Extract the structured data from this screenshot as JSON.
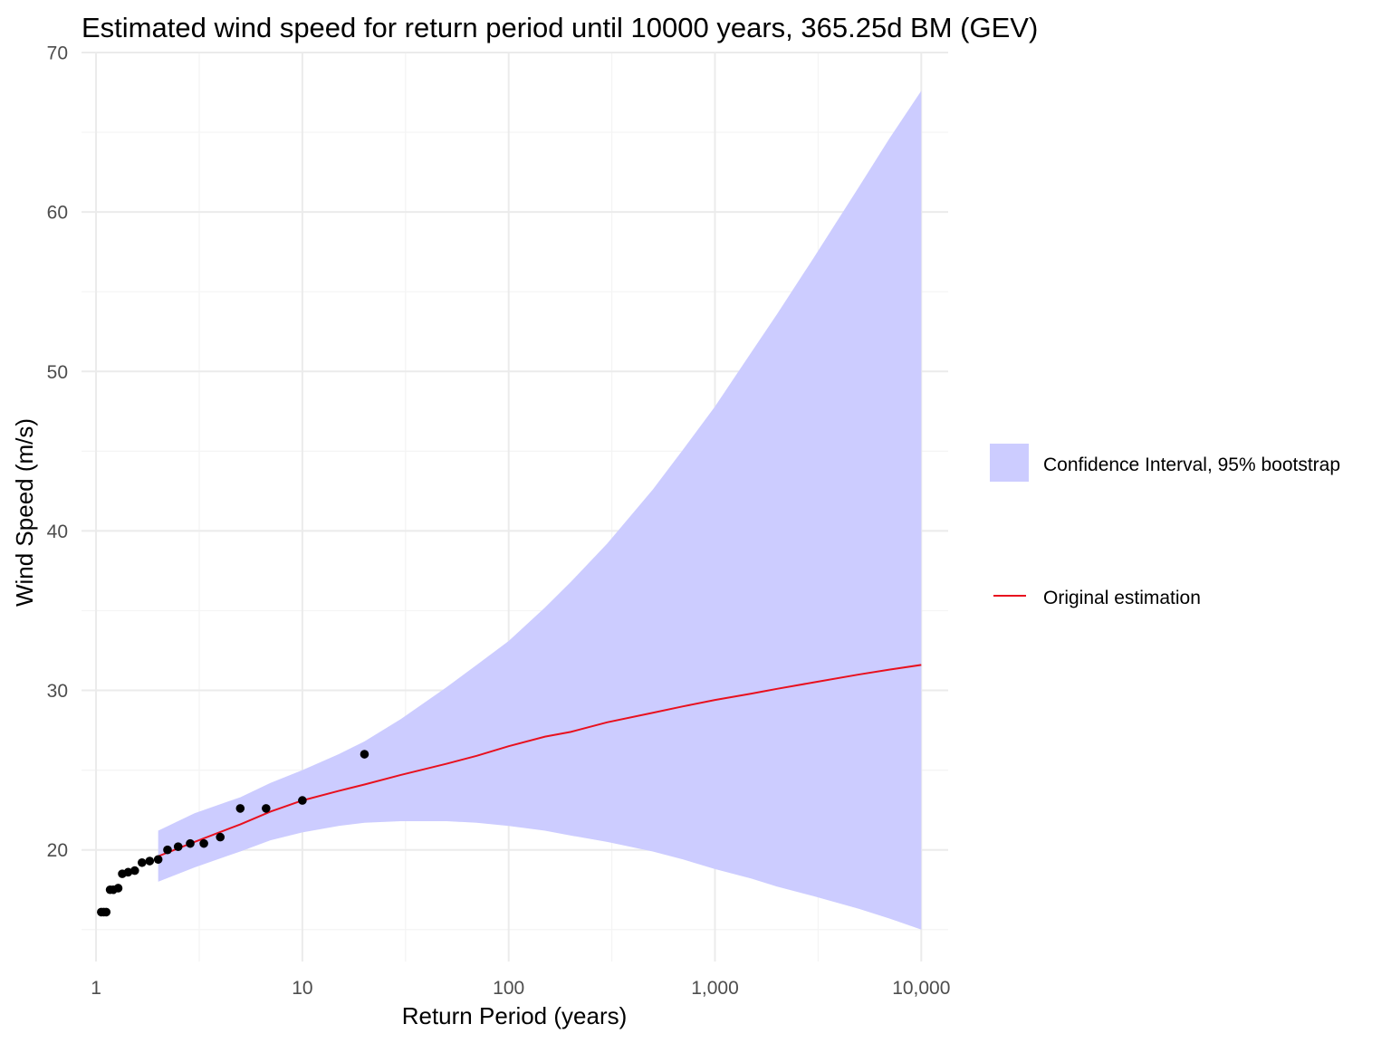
{
  "chart_data": {
    "type": "line",
    "title": "Estimated wind speed for return period until 10000 years, 365.25d BM (GEV)",
    "xlabel": "Return Period (years)",
    "ylabel": "Wind Speed (m/s)",
    "x_scale": "log10",
    "xlim": [
      0.85,
      13500
    ],
    "ylim": [
      13.0,
      70.0
    ],
    "x_ticks": [
      1,
      10,
      100,
      1000,
      10000
    ],
    "x_tick_labels": [
      "1",
      "10",
      "100",
      "1,000",
      "10,000"
    ],
    "y_ticks": [
      20,
      30,
      40,
      50,
      60,
      70
    ],
    "y_tick_labels": [
      "20",
      "30",
      "40",
      "50",
      "60",
      "70"
    ],
    "grid": true,
    "legend_position": "right",
    "colors": {
      "band": "#ccccff",
      "line": "#e8101e",
      "points": "#000000",
      "grid_major": "#ebebeb",
      "grid_minor": "#f4f4f4"
    },
    "confidence_band": {
      "name": "Confidence Interval, 95% bootstrap",
      "x": [
        2,
        3,
        5,
        7,
        10,
        15,
        20,
        30,
        50,
        70,
        100,
        150,
        200,
        300,
        500,
        700,
        1000,
        1500,
        2000,
        3000,
        5000,
        7000,
        10000
      ],
      "lower": [
        18.0,
        18.9,
        19.9,
        20.6,
        21.1,
        21.5,
        21.7,
        21.8,
        21.8,
        21.7,
        21.5,
        21.2,
        20.9,
        20.5,
        19.9,
        19.4,
        18.8,
        18.2,
        17.7,
        17.1,
        16.3,
        15.7,
        15.0
      ],
      "upper": [
        21.2,
        22.3,
        23.3,
        24.2,
        25.0,
        26.0,
        26.8,
        28.2,
        30.2,
        31.6,
        33.1,
        35.2,
        36.8,
        39.2,
        42.6,
        45.1,
        47.8,
        51.2,
        53.6,
        57.1,
        61.6,
        64.6,
        67.6
      ]
    },
    "series": [
      {
        "name": "Original estimation",
        "x": [
          2,
          3,
          5,
          7,
          10,
          15,
          20,
          30,
          50,
          70,
          100,
          150,
          200,
          300,
          500,
          700,
          1000,
          1500,
          2000,
          3000,
          5000,
          7000,
          10000
        ],
        "y": [
          19.6,
          20.5,
          21.6,
          22.4,
          23.1,
          23.7,
          24.1,
          24.7,
          25.4,
          25.9,
          26.5,
          27.1,
          27.4,
          28.0,
          28.6,
          29.0,
          29.4,
          29.8,
          30.1,
          30.5,
          31.0,
          31.3,
          31.6
        ]
      }
    ],
    "points": {
      "x": [
        1.06,
        1.09,
        1.12,
        1.17,
        1.21,
        1.28,
        1.34,
        1.43,
        1.54,
        1.67,
        1.82,
        2.0,
        2.22,
        2.5,
        2.86,
        3.33,
        4.0,
        5.0,
        6.67,
        10.0,
        20.0
      ],
      "y": [
        16.1,
        16.1,
        16.1,
        17.5,
        17.5,
        17.6,
        18.5,
        18.6,
        18.7,
        19.2,
        19.3,
        19.4,
        20.0,
        20.2,
        20.4,
        20.4,
        20.8,
        22.6,
        22.6,
        23.1,
        26.0
      ]
    }
  }
}
